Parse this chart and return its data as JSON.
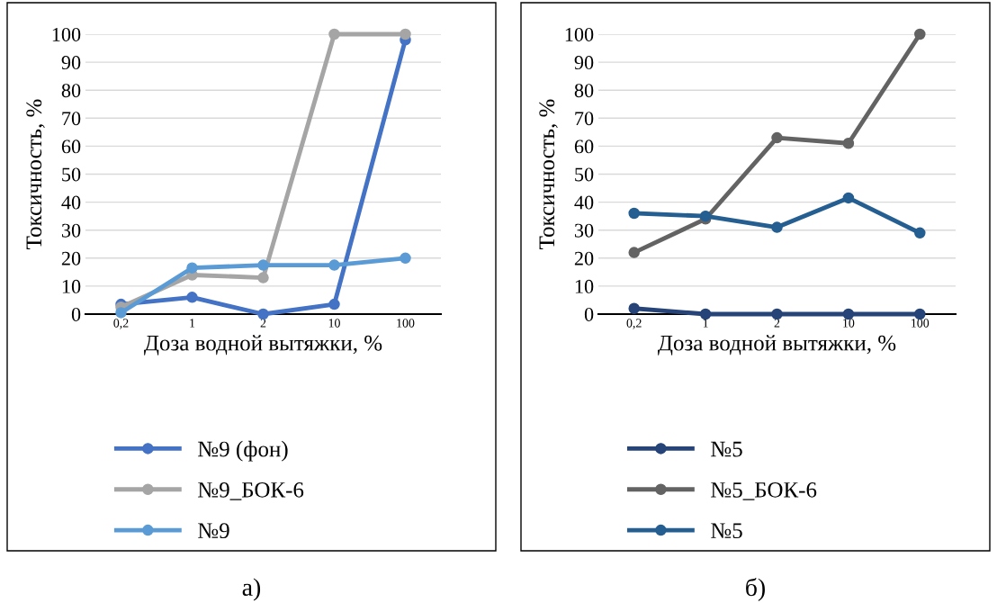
{
  "chart_data": [
    {
      "type": "line",
      "xlabel": "Доза водной вытяжки, %",
      "ylabel": "Токсичность, %",
      "categories": [
        "0,2",
        "1",
        "2",
        "10",
        "100"
      ],
      "ylim": [
        0,
        100
      ],
      "yticks": [
        0,
        10,
        20,
        30,
        40,
        50,
        60,
        70,
        80,
        90,
        100
      ],
      "grid": "y",
      "legend": "bottom",
      "marker": "circle",
      "line_style": "solid",
      "annotations": [
        "а)"
      ],
      "series": [
        {
          "name": "№9 (фон)",
          "color": "#4472c4",
          "values": [
            3.5,
            6,
            0,
            3.5,
            98
          ]
        },
        {
          "name": "№9_БОК-6",
          "color": "#a5a5a5",
          "values": [
            2.5,
            14,
            13,
            100,
            100
          ]
        },
        {
          "name": "№9",
          "color": "#5b9bd5",
          "values": [
            0.5,
            16.5,
            17.5,
            17.5,
            20
          ]
        }
      ]
    },
    {
      "type": "line",
      "xlabel": "Доза водной вытяжки, %",
      "ylabel": "Токсичность, %",
      "categories": [
        "0,2",
        "1",
        "2",
        "10",
        "100"
      ],
      "ylim": [
        0,
        100
      ],
      "yticks": [
        0,
        10,
        20,
        30,
        40,
        50,
        60,
        70,
        80,
        90,
        100
      ],
      "grid": "y",
      "legend": "bottom",
      "marker": "circle",
      "line_style": "solid",
      "annotations": [
        "б)"
      ],
      "series": [
        {
          "name": "№5",
          "color": "#264478",
          "values": [
            2,
            0,
            0,
            0,
            0
          ]
        },
        {
          "name": "№5_БОК-6",
          "color": "#636363",
          "values": [
            22,
            34,
            63,
            61,
            100
          ]
        },
        {
          "name": "№5",
          "color": "#255e91",
          "values": [
            36,
            35,
            31,
            41.5,
            29
          ]
        }
      ]
    }
  ]
}
